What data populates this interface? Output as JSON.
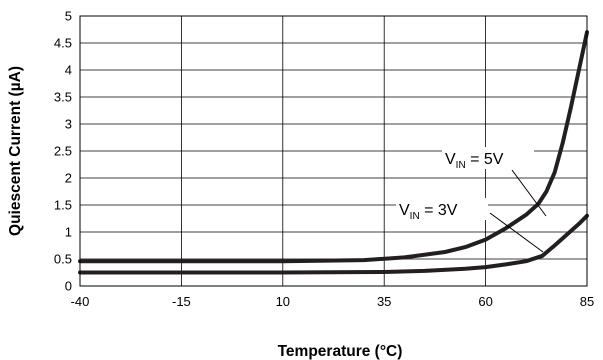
{
  "chart_data": {
    "type": "line",
    "xlabel": "Temperature (°C)",
    "ylabel": "Quiescent Current (µA)",
    "xlim": [
      -40,
      85
    ],
    "ylim": [
      0,
      5
    ],
    "xticks": [
      "-40",
      "-15",
      "10",
      "35",
      "60",
      "85"
    ],
    "yticks": [
      "0",
      "0.5",
      "1",
      "1.5",
      "2",
      "2.5",
      "3",
      "3.5",
      "4",
      "4.5",
      "5"
    ],
    "grid": true,
    "series": [
      {
        "name_main": "V",
        "name_sub": "IN",
        "name_suffix": " = 5V",
        "x": [
          -40,
          -15,
          10,
          30,
          40,
          50,
          55,
          60,
          65,
          70,
          73,
          75,
          77,
          79,
          81,
          83,
          85
        ],
        "y": [
          0.46,
          0.46,
          0.46,
          0.48,
          0.53,
          0.63,
          0.72,
          0.86,
          1.07,
          1.32,
          1.52,
          1.75,
          2.1,
          2.65,
          3.3,
          4.0,
          4.7
        ]
      },
      {
        "name_main": "V",
        "name_sub": "IN",
        "name_suffix": " = 3V",
        "x": [
          -40,
          -15,
          10,
          35,
          45,
          55,
          60,
          65,
          70,
          74,
          77,
          80,
          83,
          85
        ],
        "y": [
          0.25,
          0.25,
          0.25,
          0.26,
          0.28,
          0.32,
          0.35,
          0.4,
          0.46,
          0.56,
          0.75,
          0.95,
          1.15,
          1.3
        ]
      }
    ]
  }
}
